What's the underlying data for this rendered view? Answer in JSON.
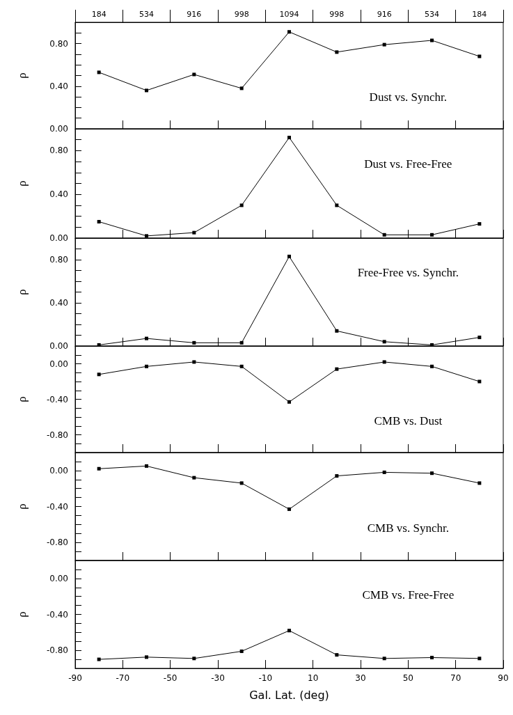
{
  "chart_data": [
    {
      "type": "line",
      "annotations": [
        "Dust vs. Synchr.",
        "184",
        "534",
        "916",
        "998",
        "1094",
        "998",
        "916",
        "534",
        "184"
      ],
      "ylabel": "ρ",
      "marker": "square",
      "grid": false,
      "tick_labels": "y",
      "x": [
        -80,
        -60,
        -40,
        -20,
        0,
        20,
        40,
        60,
        80
      ],
      "series": [
        {
          "color": "#000000",
          "values": [
            0.53,
            0.36,
            0.51,
            0.38,
            0.91,
            0.72,
            0.79,
            0.83,
            0.68
          ]
        }
      ],
      "xlim": [
        -90,
        90
      ],
      "xticks": [
        -90,
        -70,
        -50,
        -30,
        -10,
        10,
        30,
        50,
        70,
        90
      ],
      "ylim": [
        0,
        1.0
      ],
      "yticks": [
        {
          "value": 0,
          "label": "0.00"
        },
        {
          "value": 0.1,
          "label": null
        },
        {
          "value": 0.2,
          "label": null
        },
        {
          "value": 0.3,
          "label": null
        },
        {
          "value": 0.4,
          "label": "0.40"
        },
        {
          "value": 0.5,
          "label": null
        },
        {
          "value": 0.6,
          "label": null
        },
        {
          "value": 0.7,
          "label": null
        },
        {
          "value": 0.8,
          "label": "0.80"
        },
        {
          "value": 0.9,
          "label": null
        }
      ]
    },
    {
      "type": "line",
      "annotations": [
        "Dust vs. Free-Free"
      ],
      "ylabel": "ρ",
      "marker": "square",
      "grid": false,
      "tick_labels": "y",
      "x": [
        -80,
        -60,
        -40,
        -20,
        0,
        20,
        40,
        60,
        80
      ],
      "series": [
        {
          "color": "#000000",
          "values": [
            0.15,
            0.02,
            0.05,
            0.3,
            0.92,
            0.3,
            0.03,
            0.03,
            0.13
          ]
        }
      ],
      "xlim": [
        -90,
        90
      ],
      "xticks": [
        -90,
        -70,
        -50,
        -30,
        -10,
        10,
        30,
        50,
        70,
        90
      ],
      "ylim": [
        0,
        1.0
      ],
      "yticks": [
        {
          "value": 0,
          "label": "0.00"
        },
        {
          "value": 0.1,
          "label": null
        },
        {
          "value": 0.2,
          "label": null
        },
        {
          "value": 0.3,
          "label": null
        },
        {
          "value": 0.4,
          "label": "0.40"
        },
        {
          "value": 0.5,
          "label": null
        },
        {
          "value": 0.6,
          "label": null
        },
        {
          "value": 0.7,
          "label": null
        },
        {
          "value": 0.8,
          "label": "0.80"
        },
        {
          "value": 0.9,
          "label": null
        }
      ]
    },
    {
      "type": "line",
      "annotations": [
        "Free-Free vs. Synchr."
      ],
      "ylabel": "ρ",
      "marker": "square",
      "grid": false,
      "tick_labels": "y",
      "x": [
        -80,
        -60,
        -40,
        -20,
        0,
        20,
        40,
        60,
        80
      ],
      "series": [
        {
          "color": "#000000",
          "values": [
            0.01,
            0.07,
            0.03,
            0.03,
            0.83,
            0.14,
            0.04,
            0.01,
            0.08
          ]
        }
      ],
      "xlim": [
        -90,
        90
      ],
      "xticks": [
        -90,
        -70,
        -50,
        -30,
        -10,
        10,
        30,
        50,
        70,
        90
      ],
      "ylim": [
        0,
        1.0
      ],
      "yticks": [
        {
          "value": 0,
          "label": "0.00"
        },
        {
          "value": 0.1,
          "label": null
        },
        {
          "value": 0.2,
          "label": null
        },
        {
          "value": 0.3,
          "label": null
        },
        {
          "value": 0.4,
          "label": "0.40"
        },
        {
          "value": 0.5,
          "label": null
        },
        {
          "value": 0.6,
          "label": null
        },
        {
          "value": 0.7,
          "label": null
        },
        {
          "value": 0.8,
          "label": "0.80"
        },
        {
          "value": 0.9,
          "label": null
        }
      ]
    },
    {
      "type": "line",
      "annotations": [
        "CMB vs. Dust"
      ],
      "ylabel": "ρ",
      "marker": "square",
      "grid": false,
      "tick_labels": "y",
      "x": [
        -80,
        -60,
        -40,
        -20,
        0,
        20,
        40,
        60,
        80
      ],
      "series": [
        {
          "color": "#000000",
          "values": [
            -0.12,
            -0.03,
            0.02,
            -0.03,
            -0.43,
            -0.06,
            0.02,
            -0.03,
            -0.2
          ]
        }
      ],
      "xlim": [
        -90,
        90
      ],
      "xticks": [
        -90,
        -70,
        -50,
        -30,
        -10,
        10,
        30,
        50,
        70,
        90
      ],
      "ylim": [
        -1.0,
        0.2
      ],
      "yticks": [
        {
          "value": -0.9,
          "label": null
        },
        {
          "value": -0.8,
          "label": "-0.80"
        },
        {
          "value": -0.7,
          "label": null
        },
        {
          "value": -0.6,
          "label": null
        },
        {
          "value": -0.5,
          "label": null
        },
        {
          "value": -0.4,
          "label": "-0.40"
        },
        {
          "value": -0.3,
          "label": null
        },
        {
          "value": -0.2,
          "label": null
        },
        {
          "value": -0.1,
          "label": null
        },
        {
          "value": 0,
          "label": "0.00"
        },
        {
          "value": 0.1,
          "label": null
        }
      ]
    },
    {
      "type": "line",
      "annotations": [
        "CMB vs. Synchr."
      ],
      "ylabel": "ρ",
      "marker": "square",
      "grid": false,
      "tick_labels": "y",
      "x": [
        -80,
        -60,
        -40,
        -20,
        0,
        20,
        40,
        60,
        80
      ],
      "series": [
        {
          "color": "#000000",
          "values": [
            0.02,
            0.05,
            -0.08,
            -0.14,
            -0.43,
            -0.06,
            -0.02,
            -0.03,
            -0.14
          ]
        }
      ],
      "xlim": [
        -90,
        90
      ],
      "xticks": [
        -90,
        -70,
        -50,
        -30,
        -10,
        10,
        30,
        50,
        70,
        90
      ],
      "ylim": [
        -1.0,
        0.2
      ],
      "yticks": [
        {
          "value": -0.9,
          "label": null
        },
        {
          "value": -0.8,
          "label": "-0.80"
        },
        {
          "value": -0.7,
          "label": null
        },
        {
          "value": -0.6,
          "label": null
        },
        {
          "value": -0.5,
          "label": null
        },
        {
          "value": -0.4,
          "label": "-0.40"
        },
        {
          "value": -0.3,
          "label": null
        },
        {
          "value": -0.2,
          "label": null
        },
        {
          "value": -0.1,
          "label": null
        },
        {
          "value": 0,
          "label": "0.00"
        },
        {
          "value": 0.1,
          "label": null
        }
      ]
    },
    {
      "type": "line",
      "annotations": [
        "CMB vs. Free-Free"
      ],
      "ylabel": "ρ",
      "xlabel": "Gal. Lat. (deg)",
      "marker": "square",
      "grid": false,
      "x": [
        -80,
        -60,
        -40,
        -20,
        0,
        20,
        40,
        60,
        80
      ],
      "series": [
        {
          "color": "#000000",
          "values": [
            -0.9,
            -0.875,
            -0.89,
            -0.81,
            -0.58,
            -0.85,
            -0.89,
            -0.88,
            -0.89
          ]
        }
      ],
      "xlim": [
        -90,
        90
      ],
      "xticks": [
        -90,
        -70,
        -50,
        -30,
        -10,
        10,
        30,
        50,
        70,
        90
      ],
      "ylim": [
        -1.0,
        0.2
      ],
      "yticks": [
        {
          "value": -0.9,
          "label": null
        },
        {
          "value": -0.8,
          "label": "-0.80"
        },
        {
          "value": -0.7,
          "label": null
        },
        {
          "value": -0.6,
          "label": null
        },
        {
          "value": -0.5,
          "label": null
        },
        {
          "value": -0.4,
          "label": "-0.40"
        },
        {
          "value": -0.3,
          "label": null
        },
        {
          "value": -0.2,
          "label": null
        },
        {
          "value": -0.1,
          "label": null
        },
        {
          "value": 0,
          "label": "0.00"
        },
        {
          "value": 0.1,
          "label": null
        }
      ]
    }
  ]
}
